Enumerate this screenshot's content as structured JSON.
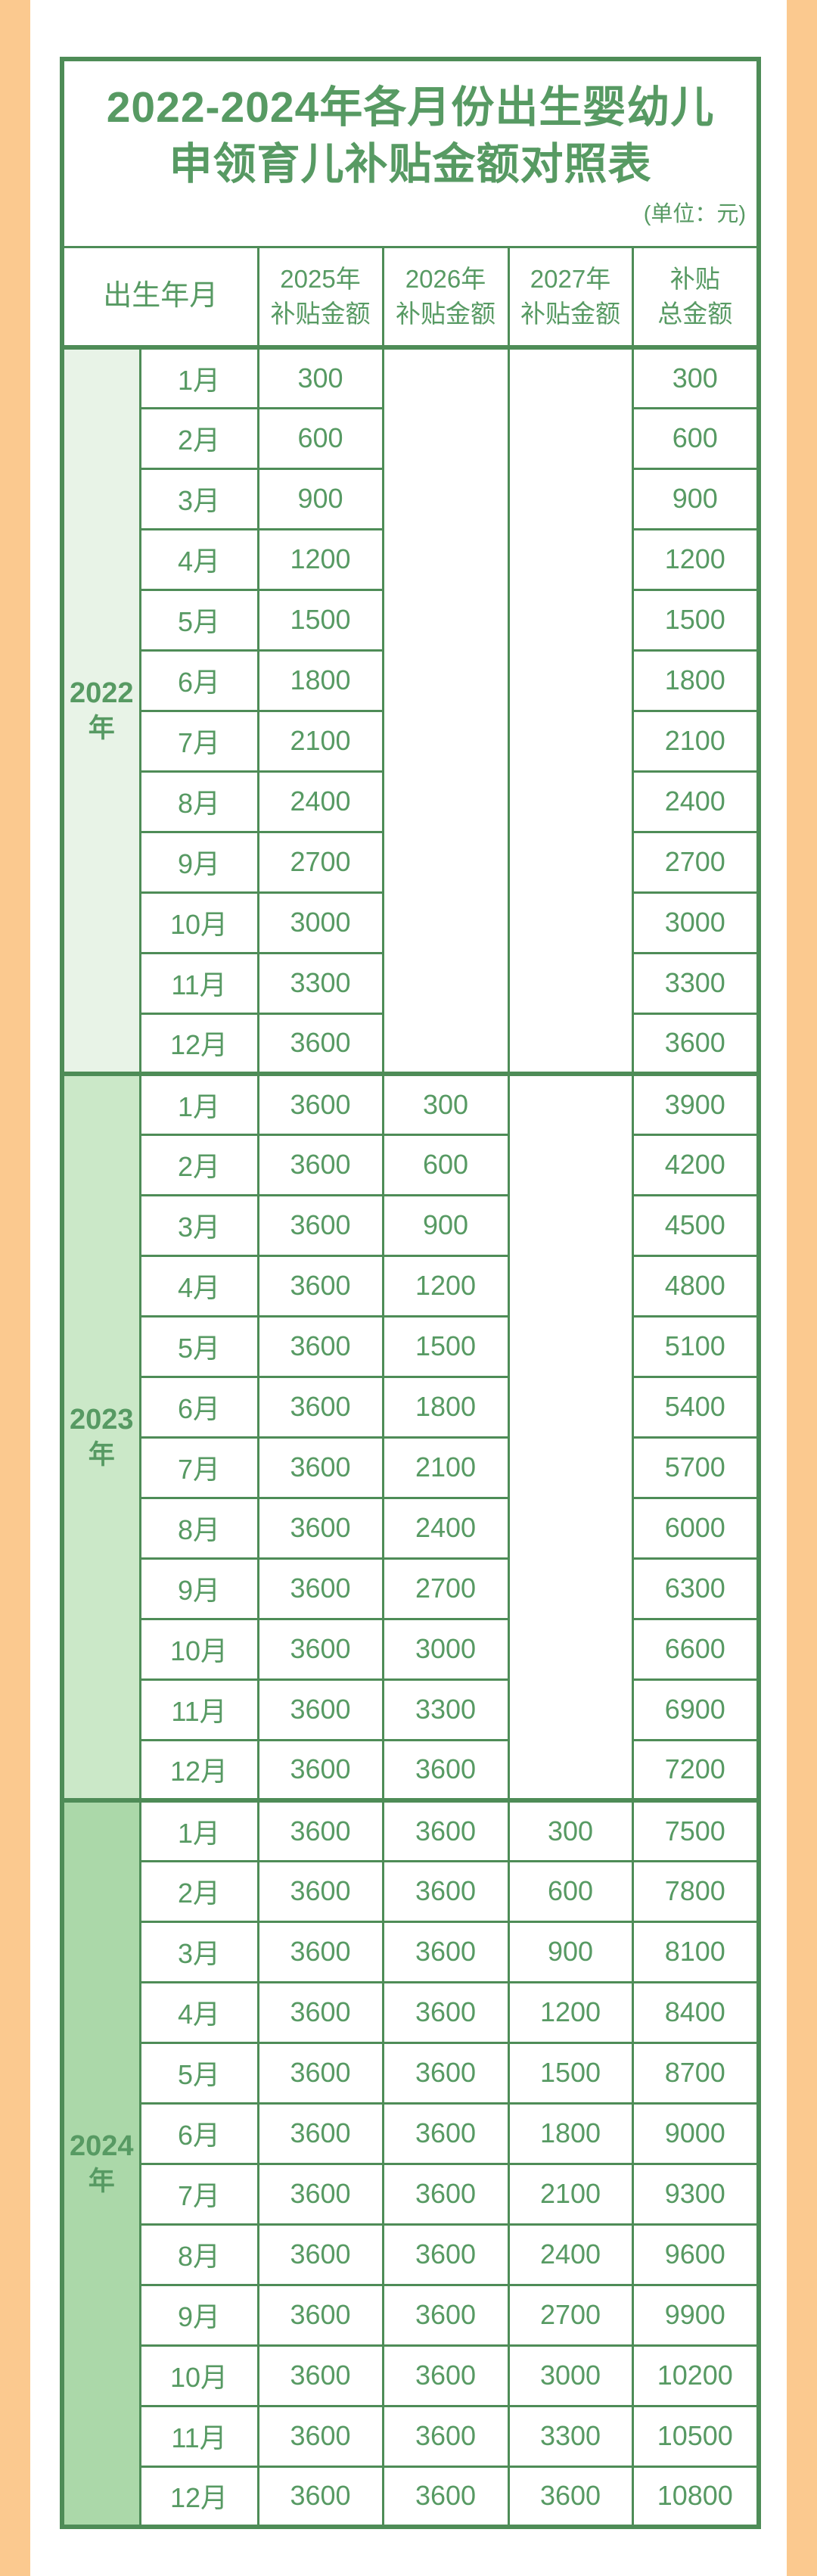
{
  "title": {
    "line1": "2022-2024年各月份出生婴幼儿",
    "line2": "申领育儿补贴金额对照表",
    "unit_note": "(单位：元)"
  },
  "colors": {
    "frame_orange": "#fbc98f",
    "border_green": "#4e8c57",
    "text_green": "#579a63",
    "year_2022_bg": "#e8f3e7",
    "year_2023_bg": "#cbe8c8",
    "year_2024_bg": "#abd8a9"
  },
  "table": {
    "headers": {
      "birth": "出生年月",
      "y2025": [
        "2025年",
        "补贴金额"
      ],
      "y2026": [
        "2026年",
        "补贴金额"
      ],
      "y2027": [
        "2027年",
        "补贴金额"
      ],
      "total": [
        "补贴",
        "总金额"
      ]
    },
    "year_groups": [
      {
        "year": "2022",
        "suffix": "年",
        "bg": "#e8f3e7",
        "rows": [
          {
            "month": "1月",
            "y2025": "300",
            "y2026": null,
            "y2027": null,
            "total": "300"
          },
          {
            "month": "2月",
            "y2025": "600",
            "y2026": null,
            "y2027": null,
            "total": "600"
          },
          {
            "month": "3月",
            "y2025": "900",
            "y2026": null,
            "y2027": null,
            "total": "900"
          },
          {
            "month": "4月",
            "y2025": "1200",
            "y2026": null,
            "y2027": null,
            "total": "1200"
          },
          {
            "month": "5月",
            "y2025": "1500",
            "y2026": null,
            "y2027": null,
            "total": "1500"
          },
          {
            "month": "6月",
            "y2025": "1800",
            "y2026": null,
            "y2027": null,
            "total": "1800"
          },
          {
            "month": "7月",
            "y2025": "2100",
            "y2026": null,
            "y2027": null,
            "total": "2100"
          },
          {
            "month": "8月",
            "y2025": "2400",
            "y2026": null,
            "y2027": null,
            "total": "2400"
          },
          {
            "month": "9月",
            "y2025": "2700",
            "y2026": null,
            "y2027": null,
            "total": "2700"
          },
          {
            "month": "10月",
            "y2025": "3000",
            "y2026": null,
            "y2027": null,
            "total": "3000"
          },
          {
            "month": "11月",
            "y2025": "3300",
            "y2026": null,
            "y2027": null,
            "total": "3300"
          },
          {
            "month": "12月",
            "y2025": "3600",
            "y2026": null,
            "y2027": null,
            "total": "3600"
          }
        ]
      },
      {
        "year": "2023",
        "suffix": "年",
        "bg": "#cbe8c8",
        "rows": [
          {
            "month": "1月",
            "y2025": "3600",
            "y2026": "300",
            "y2027": null,
            "total": "3900"
          },
          {
            "month": "2月",
            "y2025": "3600",
            "y2026": "600",
            "y2027": null,
            "total": "4200"
          },
          {
            "month": "3月",
            "y2025": "3600",
            "y2026": "900",
            "y2027": null,
            "total": "4500"
          },
          {
            "month": "4月",
            "y2025": "3600",
            "y2026": "1200",
            "y2027": null,
            "total": "4800"
          },
          {
            "month": "5月",
            "y2025": "3600",
            "y2026": "1500",
            "y2027": null,
            "total": "5100"
          },
          {
            "month": "6月",
            "y2025": "3600",
            "y2026": "1800",
            "y2027": null,
            "total": "5400"
          },
          {
            "month": "7月",
            "y2025": "3600",
            "y2026": "2100",
            "y2027": null,
            "total": "5700"
          },
          {
            "month": "8月",
            "y2025": "3600",
            "y2026": "2400",
            "y2027": null,
            "total": "6000"
          },
          {
            "month": "9月",
            "y2025": "3600",
            "y2026": "2700",
            "y2027": null,
            "total": "6300"
          },
          {
            "month": "10月",
            "y2025": "3600",
            "y2026": "3000",
            "y2027": null,
            "total": "6600"
          },
          {
            "month": "11月",
            "y2025": "3600",
            "y2026": "3300",
            "y2027": null,
            "total": "6900"
          },
          {
            "month": "12月",
            "y2025": "3600",
            "y2026": "3600",
            "y2027": null,
            "total": "7200"
          }
        ]
      },
      {
        "year": "2024",
        "suffix": "年",
        "bg": "#abd8a9",
        "rows": [
          {
            "month": "1月",
            "y2025": "3600",
            "y2026": "3600",
            "y2027": "300",
            "total": "7500"
          },
          {
            "month": "2月",
            "y2025": "3600",
            "y2026": "3600",
            "y2027": "600",
            "total": "7800"
          },
          {
            "month": "3月",
            "y2025": "3600",
            "y2026": "3600",
            "y2027": "900",
            "total": "8100"
          },
          {
            "month": "4月",
            "y2025": "3600",
            "y2026": "3600",
            "y2027": "1200",
            "total": "8400"
          },
          {
            "month": "5月",
            "y2025": "3600",
            "y2026": "3600",
            "y2027": "1500",
            "total": "8700"
          },
          {
            "month": "6月",
            "y2025": "3600",
            "y2026": "3600",
            "y2027": "1800",
            "total": "9000"
          },
          {
            "month": "7月",
            "y2025": "3600",
            "y2026": "3600",
            "y2027": "2100",
            "total": "9300"
          },
          {
            "month": "8月",
            "y2025": "3600",
            "y2026": "3600",
            "y2027": "2400",
            "total": "9600"
          },
          {
            "month": "9月",
            "y2025": "3600",
            "y2026": "3600",
            "y2027": "2700",
            "total": "9900"
          },
          {
            "month": "10月",
            "y2025": "3600",
            "y2026": "3600",
            "y2027": "3000",
            "total": "10200"
          },
          {
            "month": "11月",
            "y2025": "3600",
            "y2026": "3600",
            "y2027": "3300",
            "total": "10500"
          },
          {
            "month": "12月",
            "y2025": "3600",
            "y2026": "3600",
            "y2027": "3600",
            "total": "10800"
          }
        ]
      }
    ]
  }
}
